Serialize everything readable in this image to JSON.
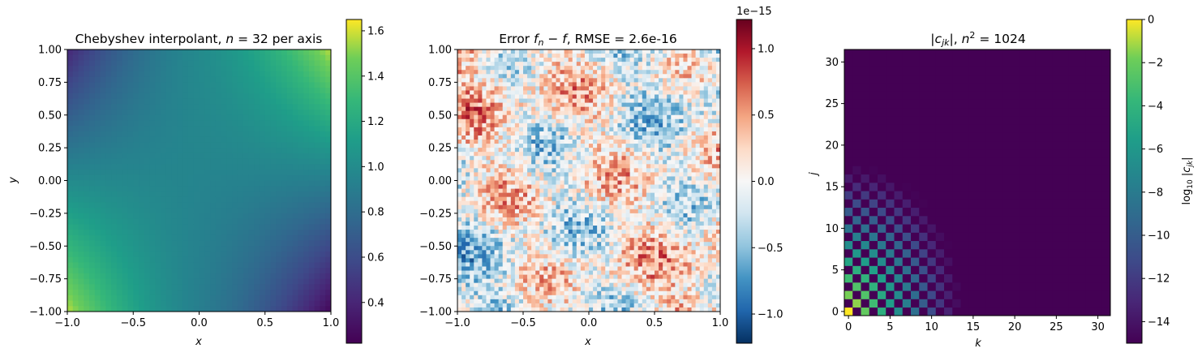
{
  "chart_data": [
    {
      "type": "heatmap",
      "title": "Chebyshev interpolant, n = 32 per axis",
      "title_parts": {
        "pre": "Chebyshev interpolant, ",
        "var": "n",
        "post": " = 32 per axis"
      },
      "xlabel": "x",
      "ylabel": "y",
      "xlim": [
        -1,
        1
      ],
      "ylim": [
        -1,
        1
      ],
      "xticks": [
        "−1.0",
        "−0.5",
        "0.0",
        "0.5",
        "1.0"
      ],
      "yticks": [
        "−1.00",
        "−0.75",
        "−0.50",
        "−0.25",
        "0.00",
        "0.25",
        "0.50",
        "0.75",
        "1.00"
      ],
      "colormap": "viridis",
      "colorbar": {
        "range": [
          0.22,
          1.65
        ],
        "ticks": [
          "0.4",
          "0.6",
          "0.8",
          "1.0",
          "1.2",
          "1.4",
          "1.6"
        ],
        "label": ""
      },
      "grid": false
    },
    {
      "type": "heatmap",
      "title": "Error f_n − f, RMSE = 2.6e-16",
      "title_parts": {
        "pre": "Error ",
        "var": "f",
        "sub": "n",
        "mid": " − ",
        "var2": "f",
        "post": ", RMSE = 2.6e-16"
      },
      "xlabel": "x",
      "ylabel": "",
      "xlim": [
        -1,
        1
      ],
      "ylim": [
        -1,
        1
      ],
      "xticks": [
        "−1.0",
        "−0.5",
        "0.0",
        "0.5",
        "1.0"
      ],
      "yticks": [
        "−1.00",
        "−0.75",
        "−0.50",
        "−0.25",
        "0.00",
        "0.25",
        "0.50",
        "0.75",
        "1.00"
      ],
      "colormap": "RdBu_r",
      "rmse": 2.6e-16,
      "colorbar": {
        "range": [
          -1.22,
          1.22
        ],
        "ticks": [
          "−1.0",
          "−0.5",
          "0.0",
          "0.5",
          "1.0"
        ],
        "offset": "1e−15",
        "label": ""
      },
      "grid": false
    },
    {
      "type": "heatmap",
      "title": "|c_jk|, n^2 = 1024",
      "xlabel": "k",
      "ylabel": "j",
      "xlim": [
        -0.5,
        31.5
      ],
      "ylim": [
        -0.5,
        31.5
      ],
      "xticks": [
        "0",
        "5",
        "10",
        "15",
        "20",
        "25",
        "30"
      ],
      "yticks": [
        "0",
        "5",
        "10",
        "15",
        "20",
        "25",
        "30"
      ],
      "colormap": "viridis",
      "grid_size": 32,
      "colorbar": {
        "range": [
          -15,
          0
        ],
        "ticks": [
          "−14",
          "−12",
          "−10",
          "−8",
          "−6",
          "−4",
          "−2",
          "0"
        ],
        "label": "log10 |c_jk|"
      },
      "grid": false
    }
  ]
}
